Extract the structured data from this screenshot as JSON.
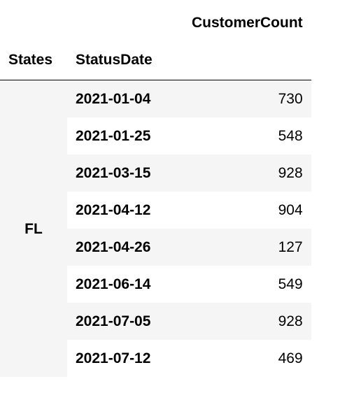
{
  "table": {
    "column_header": "CustomerCount",
    "index_names": [
      "States",
      "StatusDate"
    ],
    "state": "FL",
    "rows": [
      {
        "date": "2021-01-04",
        "count": "730"
      },
      {
        "date": "2021-01-25",
        "count": "548"
      },
      {
        "date": "2021-03-15",
        "count": "928"
      },
      {
        "date": "2021-04-12",
        "count": "904"
      },
      {
        "date": "2021-04-26",
        "count": "127"
      },
      {
        "date": "2021-06-14",
        "count": "549"
      },
      {
        "date": "2021-07-05",
        "count": "928"
      },
      {
        "date": "2021-07-12",
        "count": "469"
      }
    ]
  }
}
